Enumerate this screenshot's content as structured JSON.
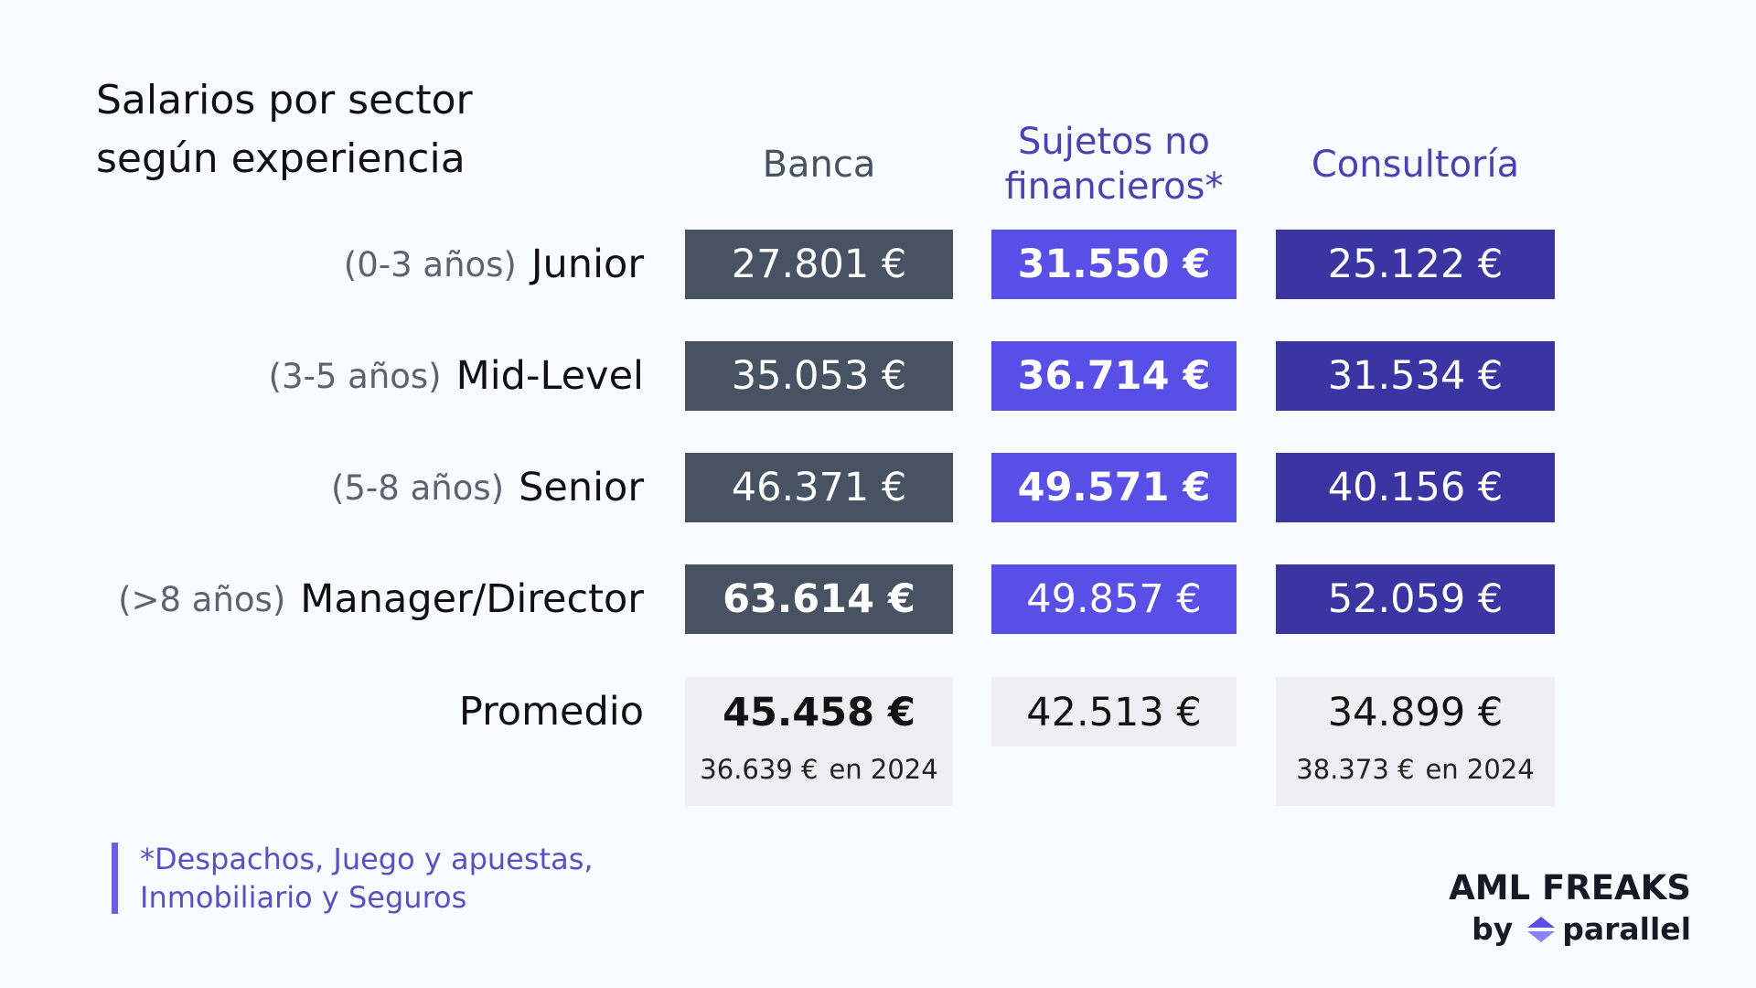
{
  "title": "Salarios por sector según experiencia",
  "columns": [
    {
      "name": "Banca",
      "color": "#475263",
      "header_color": "#475263"
    },
    {
      "name": "Sujetos no financieros*",
      "color": "#5850e6",
      "header_color": "#4b41b0"
    },
    {
      "name": "Consultoría",
      "color": "#3b34a3",
      "header_color": "#4b41b0"
    }
  ],
  "rows": [
    {
      "range": "(0-3 años)",
      "level": "Junior",
      "cells": [
        "27.801 €",
        "31.550 €",
        "25.122 €"
      ],
      "bold": 1
    },
    {
      "range": "(3-5 años)",
      "level": "Mid-Level",
      "cells": [
        "35.053 €",
        "36.714 €",
        "31.534 €"
      ],
      "bold": 1
    },
    {
      "range": "(5-8 años)",
      "level": "Senior",
      "cells": [
        "46.371 €",
        "49.571 €",
        "40.156 €"
      ],
      "bold": 1
    },
    {
      "range": "(>8 años)",
      "level": "Manager/Director",
      "cells": [
        "63.614 €",
        "49.857 €",
        "52.059 €"
      ],
      "bold": 0
    }
  ],
  "average": {
    "label": "Promedio",
    "bold": 0,
    "cells": [
      {
        "value": "45.458 €",
        "previous": "36.639 €",
        "previous_label": "en 2024"
      },
      {
        "value": "42.513 €"
      },
      {
        "value": "34.899 €",
        "previous": "38.373 €",
        "previous_label": "en 2024"
      }
    ]
  },
  "footnote": "*Despachos, Juego y apuestas, Inmobiliario y Seguros",
  "brand": {
    "name": "AML FREAKS",
    "by": "by",
    "product": "parallel"
  }
}
